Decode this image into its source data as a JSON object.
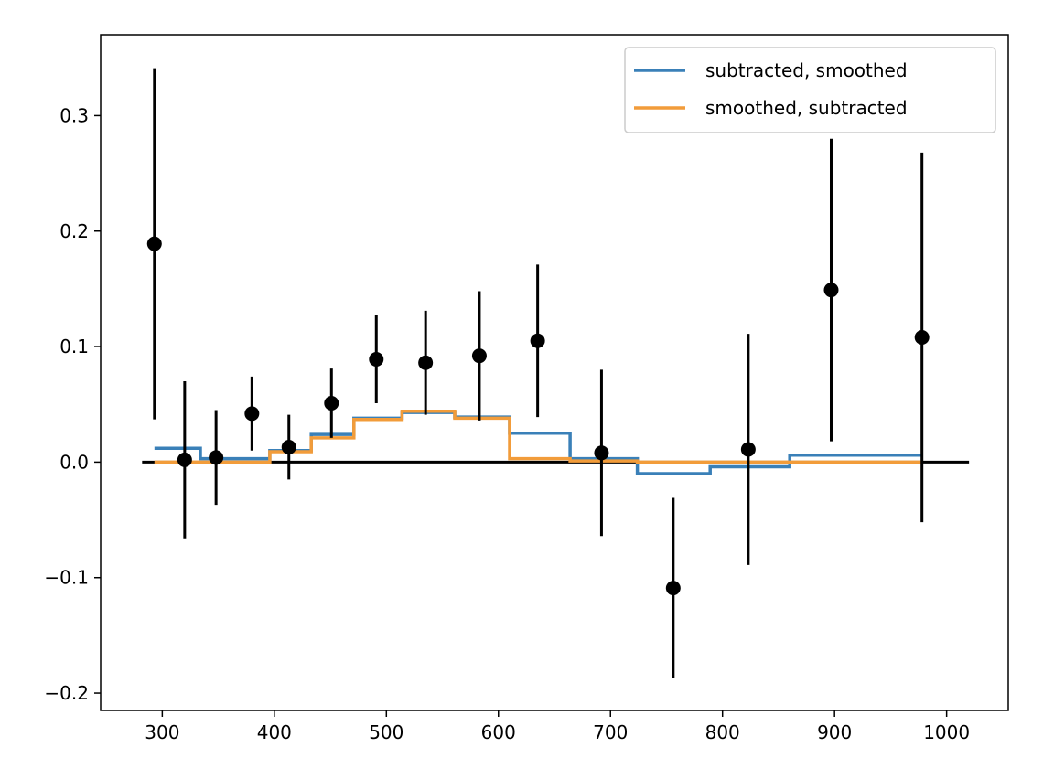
{
  "chart_data": {
    "type": "line",
    "title": "",
    "xlabel": "",
    "ylabel": "",
    "xlim": [
      245,
      1055
    ],
    "ylim": [
      -0.215,
      0.37
    ],
    "grid": false,
    "legend_position": "top-right",
    "x_ticks": [
      300,
      400,
      500,
      600,
      700,
      800,
      900,
      1000
    ],
    "y_ticks": [
      -0.2,
      -0.1,
      0.0,
      0.1,
      0.2,
      0.3
    ],
    "x_tick_labels": [
      "300",
      "400",
      "500",
      "600",
      "700",
      "800",
      "900",
      "1000"
    ],
    "y_tick_labels": [
      "−0.2",
      "−0.1",
      "0.0",
      "0.1",
      "0.2",
      "0.3"
    ],
    "zero_line": {
      "x_start": 282,
      "x_end": 1020,
      "y": 0.0,
      "color": "#000000"
    },
    "points": {
      "color": "#000000",
      "x": [
        293,
        320,
        348,
        380,
        413,
        451,
        491,
        535,
        583,
        635,
        692,
        756,
        823,
        897,
        978
      ],
      "y": [
        0.189,
        0.002,
        0.004,
        0.042,
        0.013,
        0.051,
        0.089,
        0.086,
        0.092,
        0.105,
        0.008,
        -0.109,
        0.011,
        0.149,
        0.108
      ],
      "err": [
        0.152,
        0.068,
        0.041,
        0.032,
        0.028,
        0.03,
        0.038,
        0.045,
        0.056,
        0.066,
        0.072,
        0.078,
        0.1,
        0.131,
        0.16
      ]
    },
    "series": [
      {
        "name": "subtracted, smoothed",
        "color": "#3a80b8",
        "step_edges": [
          293,
          334,
          396,
          433,
          471,
          514,
          561,
          610,
          664,
          724,
          789,
          860,
          978
        ],
        "values": [
          0.012,
          0.003,
          0.01,
          0.024,
          0.038,
          0.043,
          0.039,
          0.025,
          0.003,
          -0.01,
          -0.004,
          0.006
        ]
      },
      {
        "name": "smoothed, subtracted",
        "color": "#f29c3a",
        "step_edges": [
          293,
          334,
          396,
          433,
          471,
          514,
          561,
          610,
          664,
          724,
          789,
          860,
          978
        ],
        "values": [
          0.0,
          0.0,
          0.009,
          0.021,
          0.037,
          0.044,
          0.038,
          0.003,
          0.001,
          0.0,
          0.0,
          0.0
        ]
      }
    ]
  }
}
